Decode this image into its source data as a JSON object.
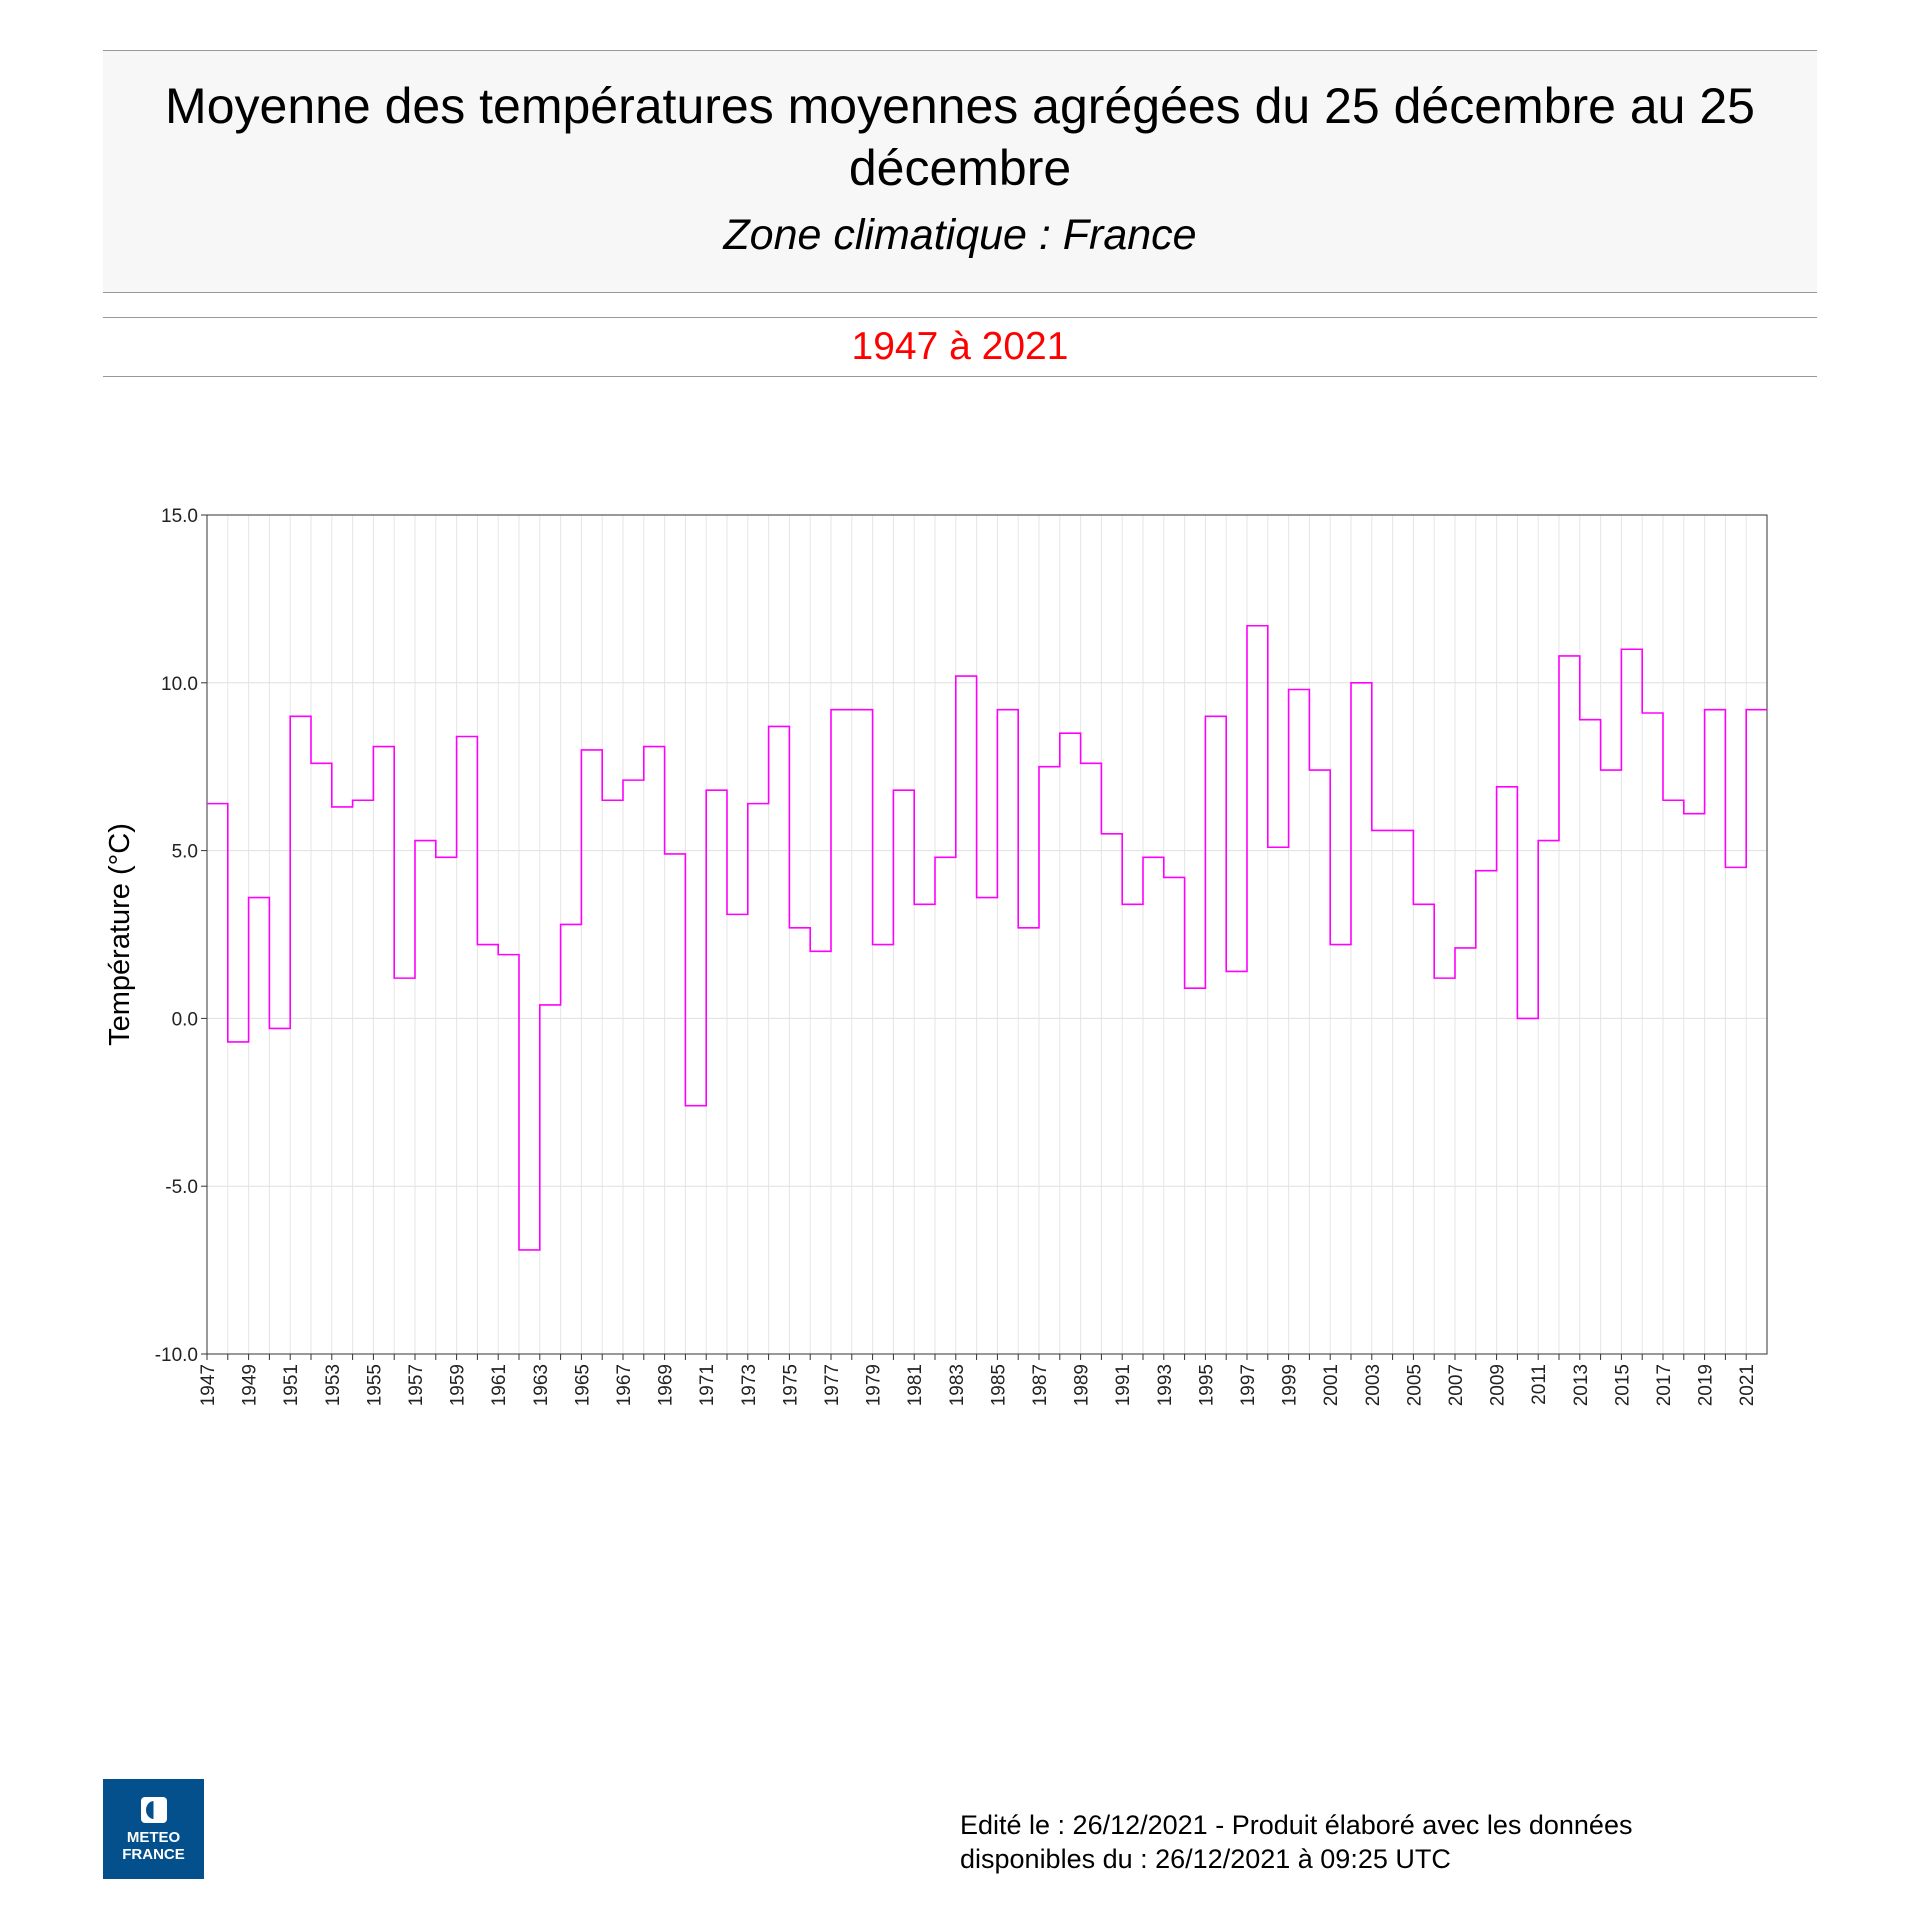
{
  "header": {
    "title": "Moyenne des températures moyennes agrégées du 25 décembre au 25 décembre",
    "subtitle": "Zone climatique : France",
    "period": "1947 à 2021"
  },
  "footer": {
    "line1": "Edité le : 26/12/2021 - Produit élaboré avec les données",
    "line2": "disponibles du : 26/12/2021 à 09:25 UTC"
  },
  "logo": {
    "text": "METEO FRANCE",
    "color": "#03508c"
  },
  "chart_data": {
    "type": "line",
    "step": true,
    "ylabel": "Température (°C)",
    "xlabel": "",
    "ylim": [
      -10,
      15
    ],
    "yticks": [
      "-10.0",
      "-5.0",
      "0.0",
      "5.0",
      "10.0",
      "15.0"
    ],
    "grid": true,
    "line_color": "#ff00ff",
    "x": [
      1947,
      1948,
      1949,
      1950,
      1951,
      1952,
      1953,
      1954,
      1955,
      1956,
      1957,
      1958,
      1959,
      1960,
      1961,
      1962,
      1963,
      1964,
      1965,
      1966,
      1967,
      1968,
      1969,
      1970,
      1971,
      1972,
      1973,
      1974,
      1975,
      1976,
      1977,
      1978,
      1979,
      1980,
      1981,
      1982,
      1983,
      1984,
      1985,
      1986,
      1987,
      1988,
      1989,
      1990,
      1991,
      1992,
      1993,
      1994,
      1995,
      1996,
      1997,
      1998,
      1999,
      2000,
      2001,
      2002,
      2003,
      2004,
      2005,
      2006,
      2007,
      2008,
      2009,
      2010,
      2011,
      2012,
      2013,
      2014,
      2015,
      2016,
      2017,
      2018,
      2019,
      2020,
      2021
    ],
    "values": [
      6.4,
      -0.7,
      3.6,
      -0.3,
      9.0,
      7.6,
      6.3,
      6.5,
      8.1,
      1.2,
      5.3,
      4.8,
      8.4,
      2.2,
      1.9,
      -6.9,
      0.4,
      2.8,
      8.0,
      6.5,
      7.1,
      8.1,
      4.9,
      -2.6,
      6.8,
      3.1,
      6.4,
      8.7,
      2.7,
      2.0,
      9.2,
      9.2,
      2.2,
      6.8,
      3.4,
      4.8,
      10.2,
      3.6,
      9.2,
      2.7,
      7.5,
      8.5,
      7.6,
      5.5,
      3.4,
      4.8,
      4.2,
      0.9,
      9.0,
      1.4,
      11.7,
      5.1,
      9.8,
      7.4,
      2.2,
      10.0,
      5.6,
      5.6,
      3.4,
      1.2,
      2.1,
      4.4,
      6.9,
      0.0,
      5.3,
      10.8,
      8.9,
      7.4,
      11.0,
      9.1,
      6.5,
      6.1,
      9.2,
      4.5,
      9.2
    ]
  }
}
